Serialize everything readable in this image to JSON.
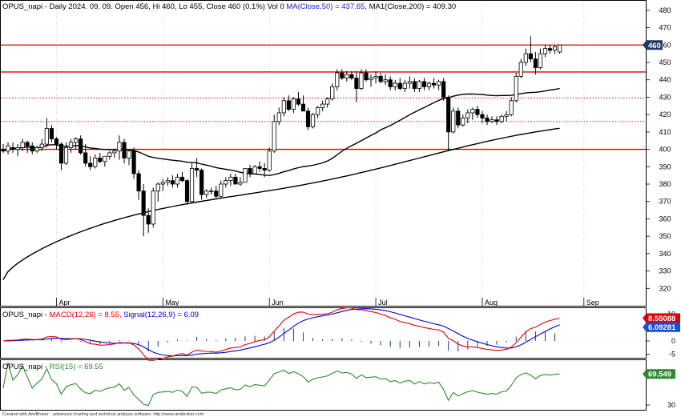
{
  "chart_data": {
    "type": "candlestick",
    "colors": {
      "up": "#ffffff",
      "down": "#000000",
      "wick": "#000000",
      "ma": "#000000",
      "hline_main": "#dd0000",
      "hline_dotted": "#cc0000",
      "macd": "#e00000",
      "signal": "#0000cc",
      "hist": "#1a3a8a",
      "rsi": "#2f8a2f",
      "last_price_tag": "#1f3a63",
      "macd_tag": "#e00000",
      "signal_tag": "#1a4fd0",
      "rsi_tag": "#2f8a2f"
    },
    "price_panel": {
      "title_ticker": "OPUS_napi",
      "title_info": " - Daily 2024. 09. 09. Open 456, Hi 460, Lo 455, Close 460 (0.1%) Vol 0",
      "title_ma50": "MA(Close,50) = 437.65,",
      "title_ma200": "MA1(Close,200) = 409.30",
      "ylim": [
        310,
        485
      ],
      "yticks": [
        "320",
        "330",
        "340",
        "350",
        "360",
        "370",
        "380",
        "390",
        "400",
        "410",
        "420",
        "430",
        "440",
        "450",
        "460",
        "470",
        "480"
      ],
      "last_price_label": "460",
      "hlines": [
        {
          "value": 460,
          "style": "solid"
        },
        {
          "value": 444.5,
          "style": "solid"
        },
        {
          "value": 429.5,
          "style": "dotted"
        },
        {
          "value": 416,
          "style": "dotted"
        },
        {
          "value": 400,
          "style": "solid"
        }
      ],
      "ohlc": [
        [
          400,
          403,
          398,
          399
        ],
        [
          399,
          404,
          397,
          402
        ],
        [
          401,
          404,
          398,
          400
        ],
        [
          400,
          403,
          396,
          401
        ],
        [
          401,
          406,
          399,
          404
        ],
        [
          404,
          405,
          398,
          402
        ],
        [
          402,
          404,
          397,
          399
        ],
        [
          399,
          402,
          398,
          401
        ],
        [
          401,
          406,
          399,
          403
        ],
        [
          403,
          418,
          401,
          412
        ],
        [
          412,
          414,
          404,
          406
        ],
        [
          406,
          407,
          400,
          403
        ],
        [
          403,
          404,
          388,
          392
        ],
        [
          392,
          404,
          391,
          401
        ],
        [
          401,
          406,
          398,
          404
        ],
        [
          404,
          407,
          400,
          406
        ],
        [
          406,
          408,
          397,
          398
        ],
        [
          398,
          403,
          390,
          392
        ],
        [
          392,
          396,
          388,
          390
        ],
        [
          390,
          397,
          389,
          395
        ],
        [
          395,
          398,
          392,
          393
        ],
        [
          393,
          396,
          390,
          396
        ],
        [
          396,
          399,
          394,
          398
        ],
        [
          398,
          400,
          395,
          399
        ],
        [
          399,
          408,
          394,
          404
        ],
        [
          404,
          406,
          392,
          395
        ],
        [
          395,
          400,
          391,
          399
        ],
        [
          399,
          401,
          383,
          386
        ],
        [
          386,
          388,
          371,
          376
        ],
        [
          376,
          380,
          350,
          362
        ],
        [
          362,
          366,
          352,
          357
        ],
        [
          357,
          378,
          355,
          376
        ],
        [
          376,
          381,
          370,
          380
        ],
        [
          380,
          383,
          376,
          381
        ],
        [
          381,
          384,
          379,
          382
        ],
        [
          382,
          385,
          378,
          380
        ],
        [
          380,
          386,
          378,
          384
        ],
        [
          384,
          387,
          381,
          382
        ],
        [
          382,
          383,
          368,
          370
        ],
        [
          370,
          392,
          369,
          389
        ],
        [
          389,
          395,
          384,
          388
        ],
        [
          388,
          389,
          371,
          374
        ],
        [
          374,
          377,
          372,
          376
        ],
        [
          376,
          378,
          374,
          376
        ],
        [
          376,
          379,
          372,
          373
        ],
        [
          373,
          382,
          372,
          380
        ],
        [
          380,
          384,
          378,
          382
        ],
        [
          382,
          386,
          379,
          384
        ],
        [
          384,
          386,
          380,
          380
        ],
        [
          380,
          384,
          379,
          381
        ],
        [
          381,
          389,
          381,
          389
        ],
        [
          389,
          391,
          384,
          386
        ],
        [
          386,
          391,
          386,
          390
        ],
        [
          390,
          393,
          387,
          389
        ],
        [
          389,
          392,
          384,
          388
        ],
        [
          388,
          401,
          387,
          399
        ],
        [
          399,
          420,
          398,
          416
        ],
        [
          416,
          424,
          414,
          421
        ],
        [
          421,
          430,
          419,
          428
        ],
        [
          428,
          431,
          422,
          423
        ],
        [
          423,
          430,
          421,
          429
        ],
        [
          429,
          433,
          425,
          426
        ],
        [
          426,
          431,
          422,
          422
        ],
        [
          422,
          424,
          411,
          413
        ],
        [
          413,
          421,
          412,
          420
        ],
        [
          420,
          425,
          418,
          424
        ],
        [
          424,
          428,
          422,
          426
        ],
        [
          426,
          430,
          424,
          429
        ],
        [
          429,
          438,
          428,
          436
        ],
        [
          436,
          446,
          434,
          444
        ],
        [
          444,
          446,
          440,
          441
        ],
        [
          441,
          445,
          439,
          443
        ],
        [
          443,
          445,
          440,
          441
        ],
        [
          441,
          445,
          427,
          435
        ],
        [
          435,
          446,
          434,
          444
        ],
        [
          444,
          446,
          439,
          440
        ],
        [
          440,
          443,
          436,
          441
        ],
        [
          441,
          445,
          438,
          442
        ],
        [
          442,
          444,
          438,
          439
        ],
        [
          439,
          443,
          437,
          440
        ],
        [
          440,
          442,
          434,
          436
        ],
        [
          436,
          440,
          434,
          438
        ],
        [
          438,
          441,
          434,
          435
        ],
        [
          435,
          440,
          433,
          438
        ],
        [
          438,
          442,
          435,
          439
        ],
        [
          439,
          441,
          433,
          435
        ],
        [
          435,
          440,
          433,
          439
        ],
        [
          439,
          441,
          434,
          436
        ],
        [
          436,
          439,
          434,
          438
        ],
        [
          438,
          441,
          435,
          437
        ],
        [
          437,
          440,
          434,
          439
        ],
        [
          439,
          441,
          428,
          430
        ],
        [
          430,
          431,
          399,
          410
        ],
        [
          410,
          424,
          409,
          422
        ],
        [
          422,
          424,
          412,
          414
        ],
        [
          414,
          420,
          413,
          418
        ],
        [
          418,
          423,
          415,
          421
        ],
        [
          421,
          424,
          417,
          423
        ],
        [
          423,
          425,
          418,
          420
        ],
        [
          420,
          422,
          415,
          418
        ],
        [
          418,
          420,
          414,
          416
        ],
        [
          416,
          419,
          415,
          417
        ],
        [
          417,
          419,
          414,
          416
        ],
        [
          416,
          420,
          415,
          419
        ],
        [
          419,
          422,
          416,
          420
        ],
        [
          420,
          430,
          419,
          428
        ],
        [
          428,
          444,
          427,
          442
        ],
        [
          442,
          452,
          441,
          450
        ],
        [
          450,
          458,
          448,
          455
        ],
        [
          455,
          465,
          450,
          452
        ],
        [
          452,
          456,
          443,
          447
        ],
        [
          447,
          458,
          446,
          455
        ],
        [
          455,
          460,
          453,
          458
        ],
        [
          458,
          460,
          455,
          457
        ],
        [
          457,
          460,
          455,
          459
        ],
        [
          456,
          460,
          455,
          460
        ]
      ]
    },
    "x_months": [
      {
        "label": "Apr",
        "index": 11
      },
      {
        "label": "May",
        "index": 33
      },
      {
        "label": "Jun",
        "index": 55
      },
      {
        "label": "Jul",
        "index": 77
      },
      {
        "label": "Aug",
        "index": 99
      },
      {
        "label": "Sep",
        "index": 120
      }
    ],
    "macd_panel": {
      "title_ticker": "OPUS_napi",
      "title_macd": "MACD(12,26) = 8.55,",
      "title_signal": "Signal(12,26,9) = 6.09",
      "ylim": [
        -6,
        12
      ],
      "yticks": [
        "-5",
        "0",
        "5",
        "10"
      ],
      "macd_label": "8.55088",
      "signal_label": "6.09281"
    },
    "rsi_panel": {
      "title_ticker": "OPUS_napi",
      "title_rsi": "RSI(15) = 69.55",
      "ylim": [
        25,
        85
      ],
      "yticks": [
        "30"
      ],
      "rsi_label": "69.549"
    },
    "footer": "Created with AmiBroker - advanced charting and technical analysis software. http://www.amibroker.com"
  }
}
